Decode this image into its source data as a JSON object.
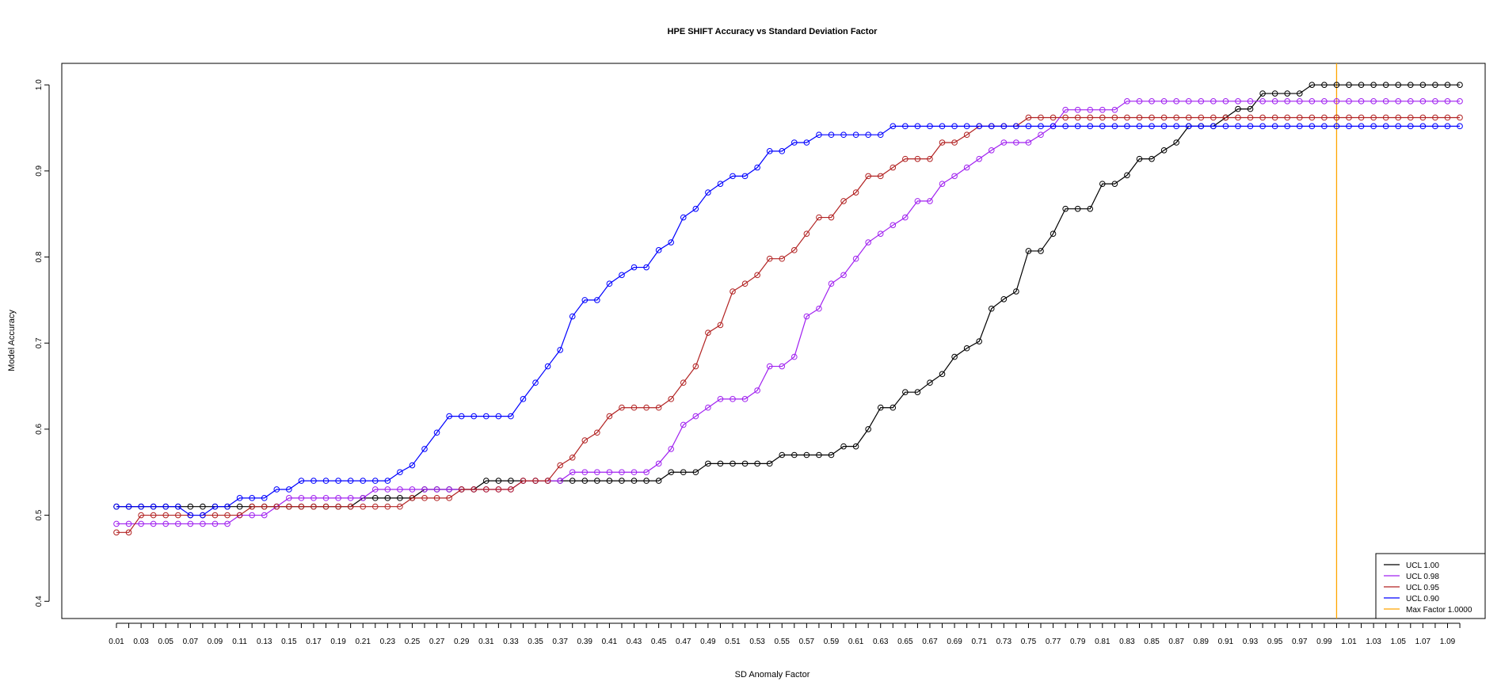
{
  "chart_data": {
    "type": "line",
    "title": "HPE SHIFT Accuracy vs Standard Deviation Factor",
    "xlabel": "SD Anomaly Factor",
    "ylabel": "Model Accuracy",
    "ylim": [
      0.38,
      1.025
    ],
    "yticks": [
      "0.4",
      "0.5",
      "0.6",
      "0.7",
      "0.8",
      "0.9",
      "1.0"
    ],
    "x_tick_labels": [
      "0.01",
      "0.03",
      "0.05",
      "0.07",
      "0.09",
      "0.11",
      "0.13",
      "0.15",
      "0.17",
      "0.19",
      "0.21",
      "0.23",
      "0.25",
      "0.27",
      "0.29",
      "0.31",
      "0.33",
      "0.35",
      "0.37",
      "0.39",
      "0.41",
      "0.43",
      "0.45",
      "0.47",
      "0.49",
      "0.51",
      "0.53",
      "0.55",
      "0.57",
      "0.59",
      "0.61",
      "0.63",
      "0.65",
      "0.67",
      "0.69",
      "0.71",
      "0.73",
      "0.75",
      "0.77",
      "0.79",
      "0.81",
      "0.83",
      "0.85",
      "0.87",
      "0.89",
      "0.91",
      "0.93",
      "0.95",
      "0.97",
      "0.99",
      "1.01",
      "1.03",
      "1.05",
      "1.07",
      "1.09"
    ],
    "x": [
      0.01,
      0.02,
      0.03,
      0.04,
      0.05,
      0.06,
      0.07,
      0.08,
      0.09,
      0.1,
      0.11,
      0.12,
      0.13,
      0.14,
      0.15,
      0.16,
      0.17,
      0.18,
      0.19,
      0.2,
      0.21,
      0.22,
      0.23,
      0.24,
      0.25,
      0.26,
      0.27,
      0.28,
      0.29,
      0.3,
      0.31,
      0.32,
      0.33,
      0.34,
      0.35,
      0.36,
      0.37,
      0.38,
      0.39,
      0.4,
      0.41,
      0.42,
      0.43,
      0.44,
      0.45,
      0.46,
      0.47,
      0.48,
      0.49,
      0.5,
      0.51,
      0.52,
      0.53,
      0.54,
      0.55,
      0.56,
      0.57,
      0.58,
      0.59,
      0.6,
      0.61,
      0.62,
      0.63,
      0.64,
      0.65,
      0.66,
      0.67,
      0.68,
      0.69,
      0.7,
      0.71,
      0.72,
      0.73,
      0.74,
      0.75,
      0.76,
      0.77,
      0.78,
      0.79,
      0.8,
      0.81,
      0.82,
      0.83,
      0.84,
      0.85,
      0.86,
      0.87,
      0.88,
      0.89,
      0.9,
      0.91,
      0.92,
      0.93,
      0.94,
      0.95,
      0.96,
      0.97,
      0.98,
      0.99,
      1.0,
      1.01,
      1.02,
      1.03,
      1.04,
      1.05,
      1.06,
      1.07,
      1.08,
      1.09,
      1.1
    ],
    "series": [
      {
        "name": "UCL 1.00",
        "color": "#000000",
        "values": [
          0.51,
          0.51,
          0.51,
          0.51,
          0.51,
          0.51,
          0.51,
          0.51,
          0.51,
          0.51,
          0.51,
          0.51,
          0.51,
          0.51,
          0.51,
          0.51,
          0.51,
          0.51,
          0.51,
          0.51,
          0.52,
          0.52,
          0.52,
          0.52,
          0.52,
          0.53,
          0.53,
          0.53,
          0.53,
          0.53,
          0.54,
          0.54,
          0.54,
          0.54,
          0.54,
          0.54,
          0.54,
          0.54,
          0.54,
          0.54,
          0.54,
          0.54,
          0.54,
          0.54,
          0.54,
          0.55,
          0.55,
          0.55,
          0.56,
          0.56,
          0.56,
          0.56,
          0.56,
          0.56,
          0.57,
          0.57,
          0.57,
          0.57,
          0.57,
          0.58,
          0.58,
          0.6,
          0.625,
          0.625,
          0.643,
          0.643,
          0.654,
          0.664,
          0.684,
          0.694,
          0.702,
          0.74,
          0.751,
          0.76,
          0.807,
          0.807,
          0.827,
          0.856,
          0.856,
          0.856,
          0.885,
          0.885,
          0.895,
          0.914,
          0.914,
          0.924,
          0.933,
          0.952,
          0.952,
          0.952,
          0.962,
          0.972,
          0.972,
          0.99,
          0.99,
          0.99,
          0.99,
          1.0,
          1.0,
          1.0,
          1.0,
          1.0,
          1.0,
          1.0,
          1.0,
          1.0,
          1.0,
          1.0,
          1.0,
          1.0
        ]
      },
      {
        "name": "UCL 0.98",
        "color": "#a020f0",
        "values": [
          0.49,
          0.49,
          0.49,
          0.49,
          0.49,
          0.49,
          0.49,
          0.49,
          0.49,
          0.49,
          0.5,
          0.5,
          0.5,
          0.51,
          0.52,
          0.52,
          0.52,
          0.52,
          0.52,
          0.52,
          0.52,
          0.53,
          0.53,
          0.53,
          0.53,
          0.53,
          0.53,
          0.53,
          0.53,
          0.53,
          0.53,
          0.53,
          0.53,
          0.54,
          0.54,
          0.54,
          0.54,
          0.55,
          0.55,
          0.55,
          0.55,
          0.55,
          0.55,
          0.55,
          0.56,
          0.577,
          0.605,
          0.615,
          0.625,
          0.635,
          0.635,
          0.635,
          0.645,
          0.673,
          0.673,
          0.684,
          0.731,
          0.74,
          0.769,
          0.779,
          0.798,
          0.817,
          0.827,
          0.837,
          0.846,
          0.865,
          0.865,
          0.885,
          0.894,
          0.904,
          0.914,
          0.924,
          0.933,
          0.933,
          0.933,
          0.942,
          0.952,
          0.971,
          0.971,
          0.971,
          0.971,
          0.971,
          0.981,
          0.981,
          0.981,
          0.981,
          0.981,
          0.981,
          0.981,
          0.981,
          0.981,
          0.981,
          0.981,
          0.981,
          0.981,
          0.981,
          0.981,
          0.981,
          0.981,
          0.981,
          0.981,
          0.981,
          0.981,
          0.981,
          0.981,
          0.981,
          0.981,
          0.981,
          0.981,
          0.981
        ]
      },
      {
        "name": "UCL 0.95",
        "color": "#b22222",
        "values": [
          0.48,
          0.48,
          0.5,
          0.5,
          0.5,
          0.5,
          0.5,
          0.5,
          0.5,
          0.5,
          0.5,
          0.51,
          0.51,
          0.51,
          0.51,
          0.51,
          0.51,
          0.51,
          0.51,
          0.51,
          0.51,
          0.51,
          0.51,
          0.51,
          0.52,
          0.52,
          0.52,
          0.52,
          0.53,
          0.53,
          0.53,
          0.53,
          0.53,
          0.54,
          0.54,
          0.54,
          0.558,
          0.567,
          0.587,
          0.596,
          0.615,
          0.625,
          0.625,
          0.625,
          0.625,
          0.635,
          0.654,
          0.673,
          0.712,
          0.721,
          0.76,
          0.769,
          0.779,
          0.798,
          0.798,
          0.808,
          0.827,
          0.846,
          0.846,
          0.865,
          0.875,
          0.894,
          0.894,
          0.904,
          0.914,
          0.914,
          0.914,
          0.933,
          0.933,
          0.942,
          0.952,
          0.952,
          0.952,
          0.952,
          0.962,
          0.962,
          0.962,
          0.962,
          0.962,
          0.962,
          0.962,
          0.962,
          0.962,
          0.962,
          0.962,
          0.962,
          0.962,
          0.962,
          0.962,
          0.962,
          0.962,
          0.962,
          0.962,
          0.962,
          0.962,
          0.962,
          0.962,
          0.962,
          0.962,
          0.962,
          0.962,
          0.962,
          0.962,
          0.962,
          0.962,
          0.962,
          0.962,
          0.962,
          0.962,
          0.962
        ]
      },
      {
        "name": "UCL 0.90",
        "color": "#0000ff",
        "values": [
          0.51,
          0.51,
          0.51,
          0.51,
          0.51,
          0.51,
          0.5,
          0.5,
          0.51,
          0.51,
          0.52,
          0.52,
          0.52,
          0.53,
          0.53,
          0.54,
          0.54,
          0.54,
          0.54,
          0.54,
          0.54,
          0.54,
          0.54,
          0.55,
          0.558,
          0.577,
          0.596,
          0.615,
          0.615,
          0.615,
          0.615,
          0.615,
          0.615,
          0.635,
          0.654,
          0.673,
          0.692,
          0.731,
          0.75,
          0.75,
          0.769,
          0.779,
          0.788,
          0.788,
          0.808,
          0.817,
          0.846,
          0.856,
          0.875,
          0.885,
          0.894,
          0.894,
          0.904,
          0.923,
          0.923,
          0.933,
          0.933,
          0.942,
          0.942,
          0.942,
          0.942,
          0.942,
          0.942,
          0.952,
          0.952,
          0.952,
          0.952,
          0.952,
          0.952,
          0.952,
          0.952,
          0.952,
          0.952,
          0.952,
          0.952,
          0.952,
          0.952,
          0.952,
          0.952,
          0.952,
          0.952,
          0.952,
          0.952,
          0.952,
          0.952,
          0.952,
          0.952,
          0.952,
          0.952,
          0.952,
          0.952,
          0.952,
          0.952,
          0.952,
          0.952,
          0.952,
          0.952,
          0.952,
          0.952,
          0.952,
          0.952,
          0.952,
          0.952,
          0.952,
          0.952,
          0.952,
          0.952,
          0.952,
          0.952,
          0.952
        ]
      }
    ],
    "vline": {
      "name": "Max Factor 1.0000",
      "x": 1.0,
      "color": "#ffa500"
    },
    "legend_position": "bottom-right",
    "grid": false
  }
}
